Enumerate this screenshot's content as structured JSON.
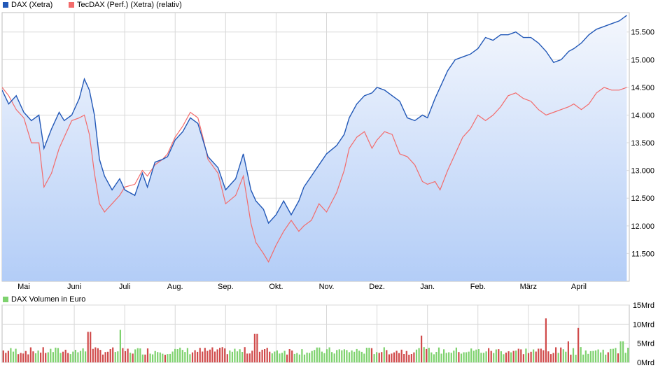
{
  "colors": {
    "dax": "#2258b7",
    "tecdax": "#f36b6b",
    "volume_up": "#7ed26e",
    "volume_down": "#d04a4a",
    "grid": "#d8d8d8",
    "area_top": "#f4f7fd",
    "area_bottom": "#b3cdf7"
  },
  "legend": {
    "dax": "DAX (Xetra)",
    "tecdax": "TecDAX (Perf.) (Xetra) (relativ)",
    "volume": "DAX Volumen in Euro"
  },
  "chart_data": [
    {
      "type": "line",
      "x_ticks": [
        "Mai",
        "Juni",
        "Juli",
        "Aug.",
        "Sep.",
        "Okt.",
        "Nov.",
        "Dez.",
        "Jan.",
        "Feb.",
        "März",
        "April"
      ],
      "x_tick_positions": [
        0.5,
        1.5,
        2.5,
        3.5,
        4.5,
        5.5,
        6.5,
        7.5,
        8.5,
        9.5,
        10.5,
        11.5
      ],
      "x_range": [
        -0.43,
        12.0
      ],
      "y_ticks": [
        "11.500",
        "12.000",
        "12.500",
        "13.000",
        "13.500",
        "14.000",
        "14.500",
        "15.000",
        "15.500"
      ],
      "y_tick_values": [
        11500,
        12000,
        12500,
        13000,
        13500,
        14000,
        14500,
        15000,
        15500
      ],
      "ylim": [
        11000,
        15850
      ],
      "grid": true,
      "legend_position": "top-left",
      "series": [
        {
          "name": "DAX (Xetra)",
          "x": [
            -0.43,
            -0.3,
            -0.15,
            0.0,
            0.15,
            0.3,
            0.4,
            0.55,
            0.7,
            0.8,
            0.95,
            1.1,
            1.2,
            1.3,
            1.4,
            1.5,
            1.6,
            1.75,
            1.9,
            2.0,
            2.2,
            2.35,
            2.45,
            2.6,
            2.75,
            2.85,
            3.0,
            3.15,
            3.3,
            3.45,
            3.55,
            3.65,
            3.85,
            4.0,
            4.2,
            4.35,
            4.5,
            4.6,
            4.75,
            4.85,
            5.0,
            5.15,
            5.3,
            5.45,
            5.55,
            5.7,
            5.85,
            6.0,
            6.2,
            6.35,
            6.45,
            6.6,
            6.75,
            6.9,
            7.0,
            7.15,
            7.3,
            7.45,
            7.6,
            7.75,
            7.9,
            8.0,
            8.15,
            8.25,
            8.4,
            8.55,
            8.7,
            8.85,
            9.0,
            9.15,
            9.3,
            9.45,
            9.6,
            9.75,
            9.9,
            10.05,
            10.2,
            10.35,
            10.5,
            10.65,
            10.8,
            10.9,
            11.05,
            11.2,
            11.35,
            11.5,
            11.65,
            11.8,
            11.95
          ],
          "values": [
            14450,
            14200,
            14350,
            14050,
            13900,
            14000,
            13400,
            13750,
            14050,
            13900,
            14000,
            14300,
            14650,
            14450,
            14000,
            13200,
            12900,
            12650,
            12850,
            12650,
            12550,
            12950,
            12700,
            13150,
            13200,
            13250,
            13550,
            13700,
            13950,
            13850,
            13550,
            13250,
            13050,
            12650,
            12850,
            13300,
            12650,
            12450,
            12300,
            12050,
            12200,
            12450,
            12200,
            12450,
            12700,
            12900,
            13100,
            13300,
            13450,
            13650,
            13950,
            14200,
            14350,
            14400,
            14500,
            14450,
            14350,
            14250,
            13950,
            13900,
            14000,
            13950,
            14300,
            14500,
            14800,
            15000,
            15050,
            15100,
            15200,
            15400,
            15350,
            15450,
            15450,
            15500,
            15400,
            15400,
            15300,
            15150,
            14950,
            15000,
            15150,
            15200,
            15300,
            15450,
            15550,
            15600,
            15650,
            15700,
            15800
          ]
        },
        {
          "name": "TecDAX (Perf.) (Xetra) (relativ)",
          "x": [
            -0.43,
            -0.3,
            -0.15,
            0.0,
            0.15,
            0.3,
            0.4,
            0.55,
            0.7,
            0.8,
            0.95,
            1.1,
            1.2,
            1.3,
            1.4,
            1.5,
            1.6,
            1.75,
            1.9,
            2.0,
            2.2,
            2.35,
            2.45,
            2.6,
            2.75,
            2.85,
            3.0,
            3.15,
            3.3,
            3.45,
            3.55,
            3.65,
            3.85,
            4.0,
            4.2,
            4.35,
            4.5,
            4.6,
            4.75,
            4.85,
            5.0,
            5.15,
            5.3,
            5.45,
            5.55,
            5.7,
            5.85,
            6.0,
            6.2,
            6.35,
            6.45,
            6.6,
            6.75,
            6.9,
            7.0,
            7.15,
            7.3,
            7.45,
            7.6,
            7.75,
            7.9,
            8.0,
            8.15,
            8.25,
            8.4,
            8.55,
            8.7,
            8.85,
            9.0,
            9.15,
            9.3,
            9.45,
            9.6,
            9.75,
            9.9,
            10.05,
            10.2,
            10.35,
            10.5,
            10.65,
            10.8,
            10.9,
            11.05,
            11.2,
            11.35,
            11.5,
            11.65,
            11.8,
            11.95
          ],
          "values": [
            14500,
            14350,
            14100,
            13950,
            13500,
            13500,
            12700,
            12950,
            13400,
            13600,
            13900,
            13950,
            14000,
            13650,
            12950,
            12400,
            12250,
            12400,
            12550,
            12700,
            12750,
            13000,
            12900,
            13100,
            13200,
            13300,
            13600,
            13800,
            14050,
            13950,
            13600,
            13200,
            12950,
            12400,
            12550,
            12900,
            12050,
            11700,
            11500,
            11350,
            11650,
            11900,
            12100,
            11900,
            12000,
            12100,
            12400,
            12250,
            12600,
            13000,
            13400,
            13600,
            13700,
            13400,
            13550,
            13700,
            13650,
            13300,
            13250,
            13100,
            12800,
            12750,
            12800,
            12650,
            13000,
            13300,
            13600,
            13750,
            14000,
            13900,
            14000,
            14150,
            14350,
            14400,
            14300,
            14250,
            14100,
            14000,
            14050,
            14100,
            14150,
            14200,
            14100,
            14200,
            14400,
            14500,
            14450,
            14450,
            14500
          ]
        }
      ]
    },
    {
      "type": "bar",
      "title": "DAX Volumen in Euro",
      "y_ticks": [
        "0Mrd",
        "5Mrd",
        "10Mrd",
        "15Mrd"
      ],
      "y_tick_values": [
        0,
        5,
        10,
        15
      ],
      "ylim": [
        0,
        15
      ],
      "unit": "Mrd Euro",
      "x_range": [
        -0.43,
        12.0
      ],
      "typical_range": [
        2,
        4
      ],
      "notable_bars": [
        {
          "x": 1.3,
          "value": 8.0,
          "direction": "down"
        },
        {
          "x": 1.9,
          "value": 8.5,
          "direction": "up"
        },
        {
          "x": 4.6,
          "value": 7.5,
          "direction": "down"
        },
        {
          "x": 7.9,
          "value": 7.0,
          "direction": "down"
        },
        {
          "x": 10.35,
          "value": 11.5,
          "direction": "down"
        },
        {
          "x": 11.0,
          "value": 9.0,
          "direction": "down"
        },
        {
          "x": 10.8,
          "value": 5.5,
          "direction": "down"
        },
        {
          "x": 11.85,
          "value": 5.5,
          "direction": "up"
        }
      ]
    }
  ]
}
